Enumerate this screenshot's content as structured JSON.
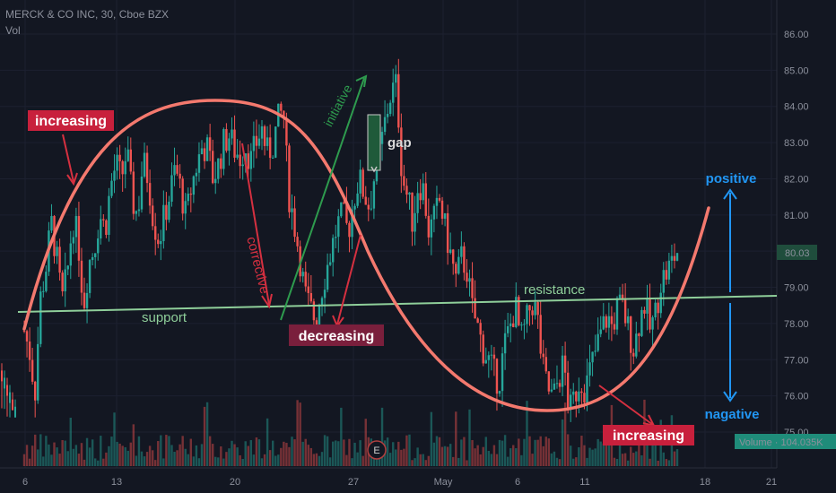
{
  "header": {
    "symbol": "MERCK & CO INC, 30, Cboe BZX",
    "vol_label": "Vol"
  },
  "colors": {
    "background": "#131722",
    "candle_up": "#26a69a",
    "candle_down": "#ef5350",
    "curve": "#f4796e",
    "support_line": "#8fcf9a",
    "annotation_red": "#c8203c",
    "annotation_dark_red": "#7a1f3c",
    "annotation_green": "#2e9b4e",
    "annotation_blue": "#2196f3",
    "text_light": "#ffffff"
  },
  "chart_data": {
    "type": "candlestick",
    "title": "MERCK & CO INC, 30, Cboe BZX",
    "ylim": [
      74.5,
      86.6
    ],
    "y_ticks": [
      "86.00",
      "85.00",
      "84.00",
      "83.00",
      "82.00",
      "81.00",
      "80.00",
      "79.00",
      "78.00",
      "77.00",
      "76.00",
      "75.00"
    ],
    "x_ticks": [
      "6",
      "13",
      "20",
      "27",
      "May",
      "6",
      "11",
      "18",
      "21"
    ],
    "price_path": [
      [
        0,
        77.8
      ],
      [
        1,
        77.2
      ],
      [
        2,
        76.1
      ],
      [
        3,
        78.7
      ],
      [
        4,
        79.5
      ],
      [
        5,
        80.8
      ],
      [
        6,
        79.8
      ],
      [
        7,
        78.6
      ],
      [
        8,
        79.4
      ],
      [
        9,
        80.9
      ],
      [
        10,
        80.3
      ],
      [
        11,
        78.5
      ],
      [
        12,
        79.7
      ],
      [
        13,
        80.1
      ],
      [
        14,
        81.0
      ],
      [
        15,
        80.6
      ],
      [
        16,
        81.8
      ],
      [
        17,
        82.4
      ],
      [
        18,
        82.0
      ],
      [
        19,
        82.8
      ],
      [
        20,
        81.4
      ],
      [
        21,
        81.0
      ],
      [
        22,
        82.5
      ],
      [
        23,
        82.0
      ],
      [
        24,
        80.8
      ],
      [
        25,
        80.3
      ],
      [
        26,
        81.0
      ],
      [
        27,
        81.6
      ],
      [
        28,
        82.3
      ],
      [
        29,
        81.7
      ],
      [
        30,
        80.9
      ],
      [
        31,
        81.8
      ],
      [
        32,
        82.4
      ],
      [
        33,
        82.9
      ],
      [
        34,
        82.8
      ],
      [
        35,
        82.0
      ],
      [
        36,
        82.4
      ],
      [
        37,
        83.0
      ],
      [
        38,
        83.2
      ],
      [
        39,
        82.8
      ],
      [
        40,
        82.6
      ],
      [
        41,
        82.9
      ],
      [
        42,
        82.5
      ],
      [
        43,
        83.0
      ],
      [
        44,
        83.4
      ],
      [
        45,
        82.7
      ],
      [
        46,
        82.9
      ],
      [
        47,
        83.6
      ],
      [
        48,
        83.9
      ],
      [
        49,
        81.6
      ],
      [
        50,
        80.8
      ],
      [
        51,
        79.9
      ],
      [
        52,
        78.8
      ],
      [
        53,
        78.4
      ],
      [
        54,
        78.1
      ],
      [
        55,
        78.9
      ],
      [
        56,
        79.5
      ],
      [
        57,
        80.1
      ],
      [
        58,
        80.7
      ],
      [
        59,
        81.0
      ],
      [
        60,
        80.5
      ],
      [
        61,
        81.4
      ],
      [
        62,
        82.0
      ],
      [
        63,
        81.6
      ],
      [
        64,
        81.2
      ],
      [
        65,
        82.2
      ],
      [
        66,
        82.8
      ],
      [
        67,
        83.7
      ],
      [
        68,
        84.4
      ],
      [
        69,
        84.6
      ],
      [
        70,
        82.1
      ],
      [
        71,
        81.5
      ],
      [
        72,
        80.8
      ],
      [
        73,
        81.9
      ],
      [
        74,
        81.7
      ],
      [
        75,
        80.5
      ],
      [
        76,
        80.9
      ],
      [
        77,
        81.4
      ],
      [
        78,
        80.6
      ],
      [
        79,
        79.9
      ],
      [
        80,
        79.2
      ],
      [
        81,
        79.8
      ],
      [
        82,
        79.5
      ],
      [
        83,
        78.4
      ],
      [
        84,
        77.9
      ],
      [
        85,
        77.3
      ],
      [
        86,
        77.0
      ],
      [
        87,
        76.6
      ],
      [
        88,
        76.4
      ],
      [
        89,
        77.4
      ],
      [
        90,
        77.9
      ],
      [
        91,
        78.5
      ],
      [
        92,
        77.5
      ],
      [
        93,
        78.0
      ],
      [
        94,
        78.6
      ],
      [
        95,
        78.3
      ],
      [
        96,
        76.8
      ],
      [
        97,
        76.2
      ],
      [
        98,
        75.9
      ],
      [
        99,
        76.5
      ],
      [
        100,
        76.9
      ],
      [
        101,
        75.5
      ],
      [
        102,
        76.0
      ],
      [
        103,
        76.5
      ],
      [
        104,
        76.2
      ],
      [
        105,
        76.8
      ],
      [
        106,
        77.3
      ],
      [
        107,
        77.8
      ],
      [
        108,
        78.2
      ],
      [
        109,
        77.9
      ],
      [
        110,
        78.5
      ],
      [
        111,
        78.4
      ],
      [
        112,
        77.8
      ],
      [
        113,
        77.3
      ],
      [
        114,
        78.1
      ],
      [
        115,
        78.6
      ],
      [
        116,
        77.8
      ],
      [
        117,
        78.3
      ],
      [
        118,
        79.2
      ],
      [
        119,
        79.4
      ],
      [
        120,
        79.7
      ],
      [
        121,
        80.0
      ]
    ],
    "support_line": [
      [
        78.35,
        0
      ],
      [
        78.78,
        121
      ]
    ],
    "annotations": [
      "increasing",
      "corrective",
      "initiative",
      "gap",
      "decreasing",
      "support",
      "resistance",
      "positive",
      "nagative",
      "increasing"
    ],
    "last_price": "80.03",
    "volume_label": "Volume · 104.035K",
    "event_marker": "E"
  },
  "labels": {
    "increasing_1": "increasing",
    "corrective": "corrective",
    "initiative": "initiative",
    "gap": "gap",
    "decreasing": "decreasing",
    "support": "support",
    "resistance": "resistance",
    "positive": "positive",
    "nagative": "nagative",
    "increasing_2": "increasing"
  }
}
